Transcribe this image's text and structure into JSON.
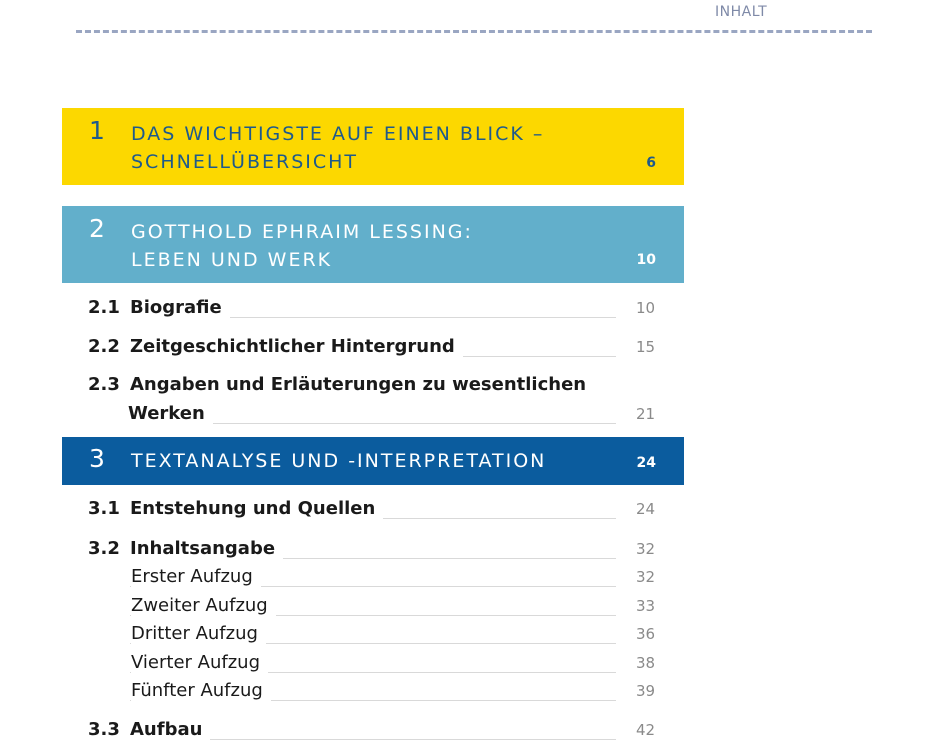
{
  "header": {
    "running_title": "INHALT"
  },
  "chapters": [
    {
      "number": "1",
      "title_line1": "DAS WICHTIGSTE AUF EINEN BLICK –",
      "title_line2": "SCHNELLÜBERSICHT",
      "page": "6",
      "color": "#fcd800"
    },
    {
      "number": "2",
      "title_line1": "GOTTHOLD EPHRAIM LESSING:",
      "title_line2": "LEBEN UND WERK",
      "page": "10",
      "color": "#62afcb"
    },
    {
      "number": "3",
      "title_line1": "TEXTANALYSE UND -INTERPRETATION",
      "page": "24",
      "color": "#0b5c9e"
    }
  ],
  "sections_ch2": [
    {
      "number": "2.1",
      "title": "Biografie",
      "page": "10"
    },
    {
      "number": "2.2",
      "title": "Zeitgeschichtlicher Hintergrund",
      "page": "15"
    },
    {
      "number": "2.3",
      "title_line1": "Angaben und Erläuterungen zu wesentlichen",
      "title_line2": "Werken",
      "page": "21"
    }
  ],
  "sections_ch3": [
    {
      "number": "3.1",
      "title": "Entstehung und Quellen",
      "page": "24"
    },
    {
      "number": "3.2",
      "title": "Inhaltsangabe",
      "page": "32"
    },
    {
      "title": "Erster Aufzug",
      "page": "32"
    },
    {
      "title": "Zweiter Aufzug",
      "page": "33"
    },
    {
      "title": "Dritter Aufzug",
      "page": "36"
    },
    {
      "title": "Vierter Aufzug",
      "page": "38"
    },
    {
      "title": "Fünfter Aufzug",
      "page": "39"
    },
    {
      "number": "3.3",
      "title": "Aufbau",
      "page": "42"
    }
  ]
}
